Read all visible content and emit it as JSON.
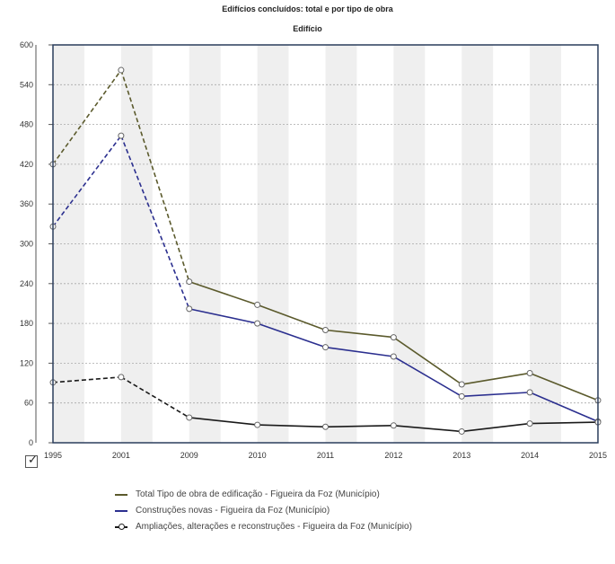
{
  "chart_data": {
    "type": "line",
    "title": "Edifícios concluídos: total e por tipo de obra",
    "subtitle": "Edifício",
    "categories": [
      "1995",
      "2001",
      "2009",
      "2010",
      "2011",
      "2012",
      "2013",
      "2014",
      "2015"
    ],
    "ylim": [
      0,
      600
    ],
    "yticks": [
      0,
      60,
      120,
      180,
      240,
      300,
      360,
      420,
      480,
      540,
      600
    ],
    "grid": true,
    "legend_position": "bottom",
    "series": [
      {
        "name": "Total Tipo de obra de edificação - Figueira da Foz (Município)",
        "color": "#5b5a2c",
        "values": [
          420,
          562,
          243,
          208,
          170,
          159,
          88,
          105,
          64
        ]
      },
      {
        "name": "Construções novas - Figueira da Foz (Município)",
        "color": "#2b2f8f",
        "values": [
          326,
          463,
          202,
          180,
          144,
          130,
          70,
          76,
          32
        ]
      },
      {
        "name": "Ampliações, alterações e reconstruções - Figueira da Foz (Município)",
        "color": "#1a1a1a",
        "values": [
          91,
          99,
          38,
          27,
          24,
          26,
          17,
          29,
          31
        ]
      }
    ]
  },
  "controls": {
    "checkbox_mark": "✓"
  }
}
